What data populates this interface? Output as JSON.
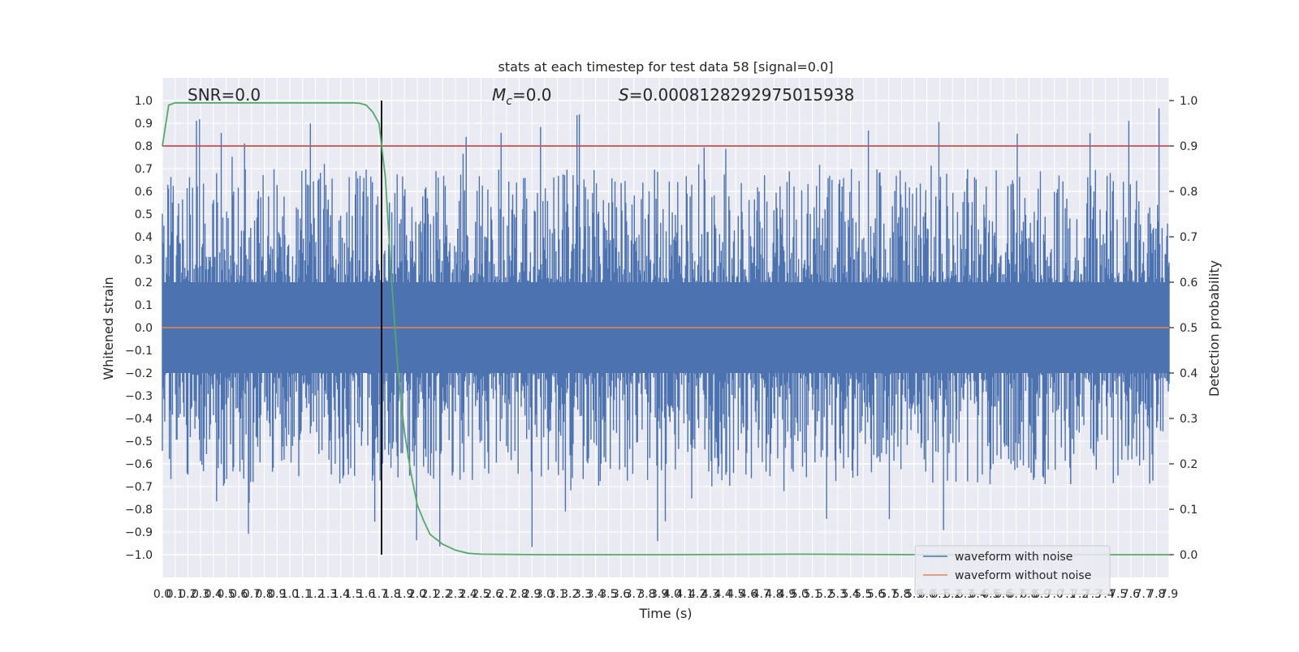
{
  "chart_data": {
    "type": "line",
    "title": "stats at each timestep for test data 58 [signal=0.0]",
    "xlabel": "Time (s)",
    "ylabel": "Whitened strain",
    "y2label": "Detection probability",
    "xlim": [
      0.0,
      7.9
    ],
    "ylim": [
      -1.1,
      1.1
    ],
    "y2lim": [
      -0.05,
      1.05
    ],
    "x_ticks": [
      "0.0",
      "0.1",
      "0.2",
      "0.3",
      "0.4",
      "0.5",
      "0.6",
      "0.7",
      "0.8",
      "0.9",
      "1.0",
      "1.1",
      "1.2",
      "1.3",
      "1.4",
      "1.5",
      "1.6",
      "1.7",
      "1.8",
      "1.9",
      "2.0",
      "2.1",
      "2.2",
      "2.3",
      "2.4",
      "2.5",
      "2.6",
      "2.7",
      "2.8",
      "2.9",
      "3.0",
      "3.1",
      "3.2",
      "3.3",
      "3.4",
      "3.5",
      "3.6",
      "3.7",
      "3.8",
      "3.9",
      "4.0",
      "4.1",
      "4.2",
      "4.3",
      "4.4",
      "4.5",
      "4.6",
      "4.7",
      "4.8",
      "4.9",
      "5.0",
      "5.1",
      "5.2",
      "5.3",
      "5.4",
      "5.5",
      "5.6",
      "5.7",
      "5.8",
      "5.9",
      "6.0",
      "6.1",
      "6.2",
      "6.3",
      "6.4",
      "6.5",
      "6.6",
      "6.7",
      "6.8",
      "6.9",
      "7.0",
      "7.1",
      "7.2",
      "7.3",
      "7.4",
      "7.5",
      "7.6",
      "7.7",
      "7.8",
      "7.9"
    ],
    "y_ticks": [
      "1.0",
      "0.9",
      "0.8",
      "0.7",
      "0.6",
      "0.5",
      "0.4",
      "0.3",
      "0.2",
      "0.1",
      "0.0",
      "−0.1",
      "−0.2",
      "−0.3",
      "−0.4",
      "−0.5",
      "−0.6",
      "−0.7",
      "−0.8",
      "−0.9",
      "−1.0"
    ],
    "y2_ticks": [
      "1.0",
      "0.9",
      "0.8",
      "0.7",
      "0.6",
      "0.5",
      "0.4",
      "0.3",
      "0.2",
      "0.1",
      "0.0"
    ],
    "grid": true,
    "legend_position": "bottom-right",
    "annotations": {
      "snr": "SNR=0.0",
      "mc_symbol": "M",
      "mc_sub": "c",
      "mc_value": "=0.0",
      "s_symbol": "S",
      "s_value": "=0.0008128292975015938"
    },
    "series": [
      {
        "name": "waveform with noise",
        "color": "#4c72b0",
        "kind": "noise",
        "approx_range": [
          -1.0,
          0.97
        ]
      },
      {
        "name": "waveform without noise",
        "color": "#dd8452",
        "x": [
          0.0,
          7.9
        ],
        "y": [
          0.0,
          0.0
        ]
      },
      {
        "color": "#55a868",
        "axis": "right",
        "x": [
          0.0,
          0.05,
          0.1,
          0.2,
          0.5,
          1.0,
          1.5,
          1.55,
          1.6,
          1.65,
          1.7,
          1.75,
          1.8,
          1.85,
          1.9,
          1.95,
          2.0,
          2.05,
          2.1,
          2.2,
          2.3,
          2.4,
          2.5,
          3.0,
          4.0,
          5.0,
          6.0,
          7.0,
          7.9
        ],
        "y": [
          0.9,
          0.99,
          0.995,
          0.995,
          0.995,
          0.995,
          0.995,
          0.994,
          0.99,
          0.975,
          0.95,
          0.83,
          0.6,
          0.4,
          0.27,
          0.18,
          0.11,
          0.075,
          0.045,
          0.023,
          0.01,
          0.003,
          0.001,
          0.0,
          0.0,
          0.001,
          0.0,
          0.0,
          0.0
        ]
      }
    ],
    "threshold": {
      "color": "#c44e52",
      "y2": 0.9
    },
    "marker_line": {
      "color": "#000000",
      "x": 1.72
    }
  }
}
